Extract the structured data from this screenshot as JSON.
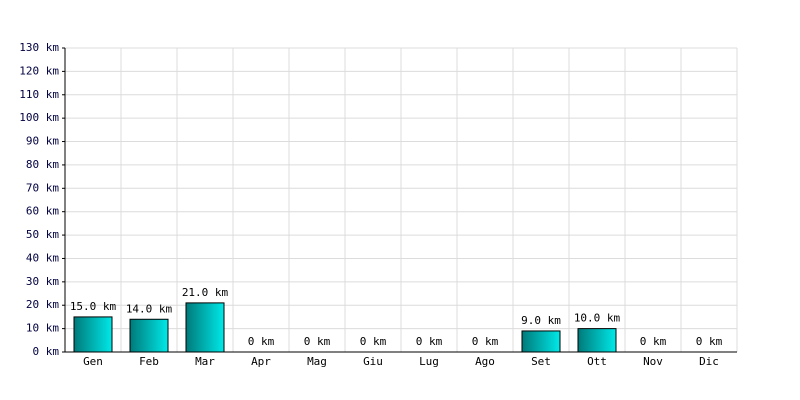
{
  "chart_data": {
    "type": "bar",
    "categories": [
      "Gen",
      "Feb",
      "Mar",
      "Apr",
      "Mag",
      "Giu",
      "Lug",
      "Ago",
      "Set",
      "Ott",
      "Nov",
      "Dic"
    ],
    "values": [
      15,
      14,
      21,
      0,
      0,
      0,
      0,
      0,
      9,
      10,
      0,
      0
    ],
    "value_labels": [
      "15.0 km",
      "14.0 km",
      "21.0 km",
      "0 km",
      "0 km",
      "0 km",
      "0 km",
      "0 km",
      "9.0 km",
      "10.0 km",
      "0 km",
      "0 km"
    ],
    "color": "#00e8e8",
    "ylim": [
      0,
      130
    ],
    "yticks": [
      {
        "value": 0,
        "label": "0 km"
      },
      {
        "value": 10,
        "label": "10 km"
      },
      {
        "value": 20,
        "label": "20 km"
      },
      {
        "value": 30,
        "label": "30 km"
      },
      {
        "value": 40,
        "label": "40 km"
      },
      {
        "value": 50,
        "label": "50 km"
      },
      {
        "value": 60,
        "label": "60 km"
      },
      {
        "value": 70,
        "label": "70 km"
      },
      {
        "value": 80,
        "label": "80 km"
      },
      {
        "value": 90,
        "label": "90 km"
      },
      {
        "value": 100,
        "label": "100 km"
      },
      {
        "value": 110,
        "label": "110 km"
      },
      {
        "value": 120,
        "label": "120 km"
      },
      {
        "value": 130,
        "label": "130 km"
      }
    ],
    "grid": true
  }
}
